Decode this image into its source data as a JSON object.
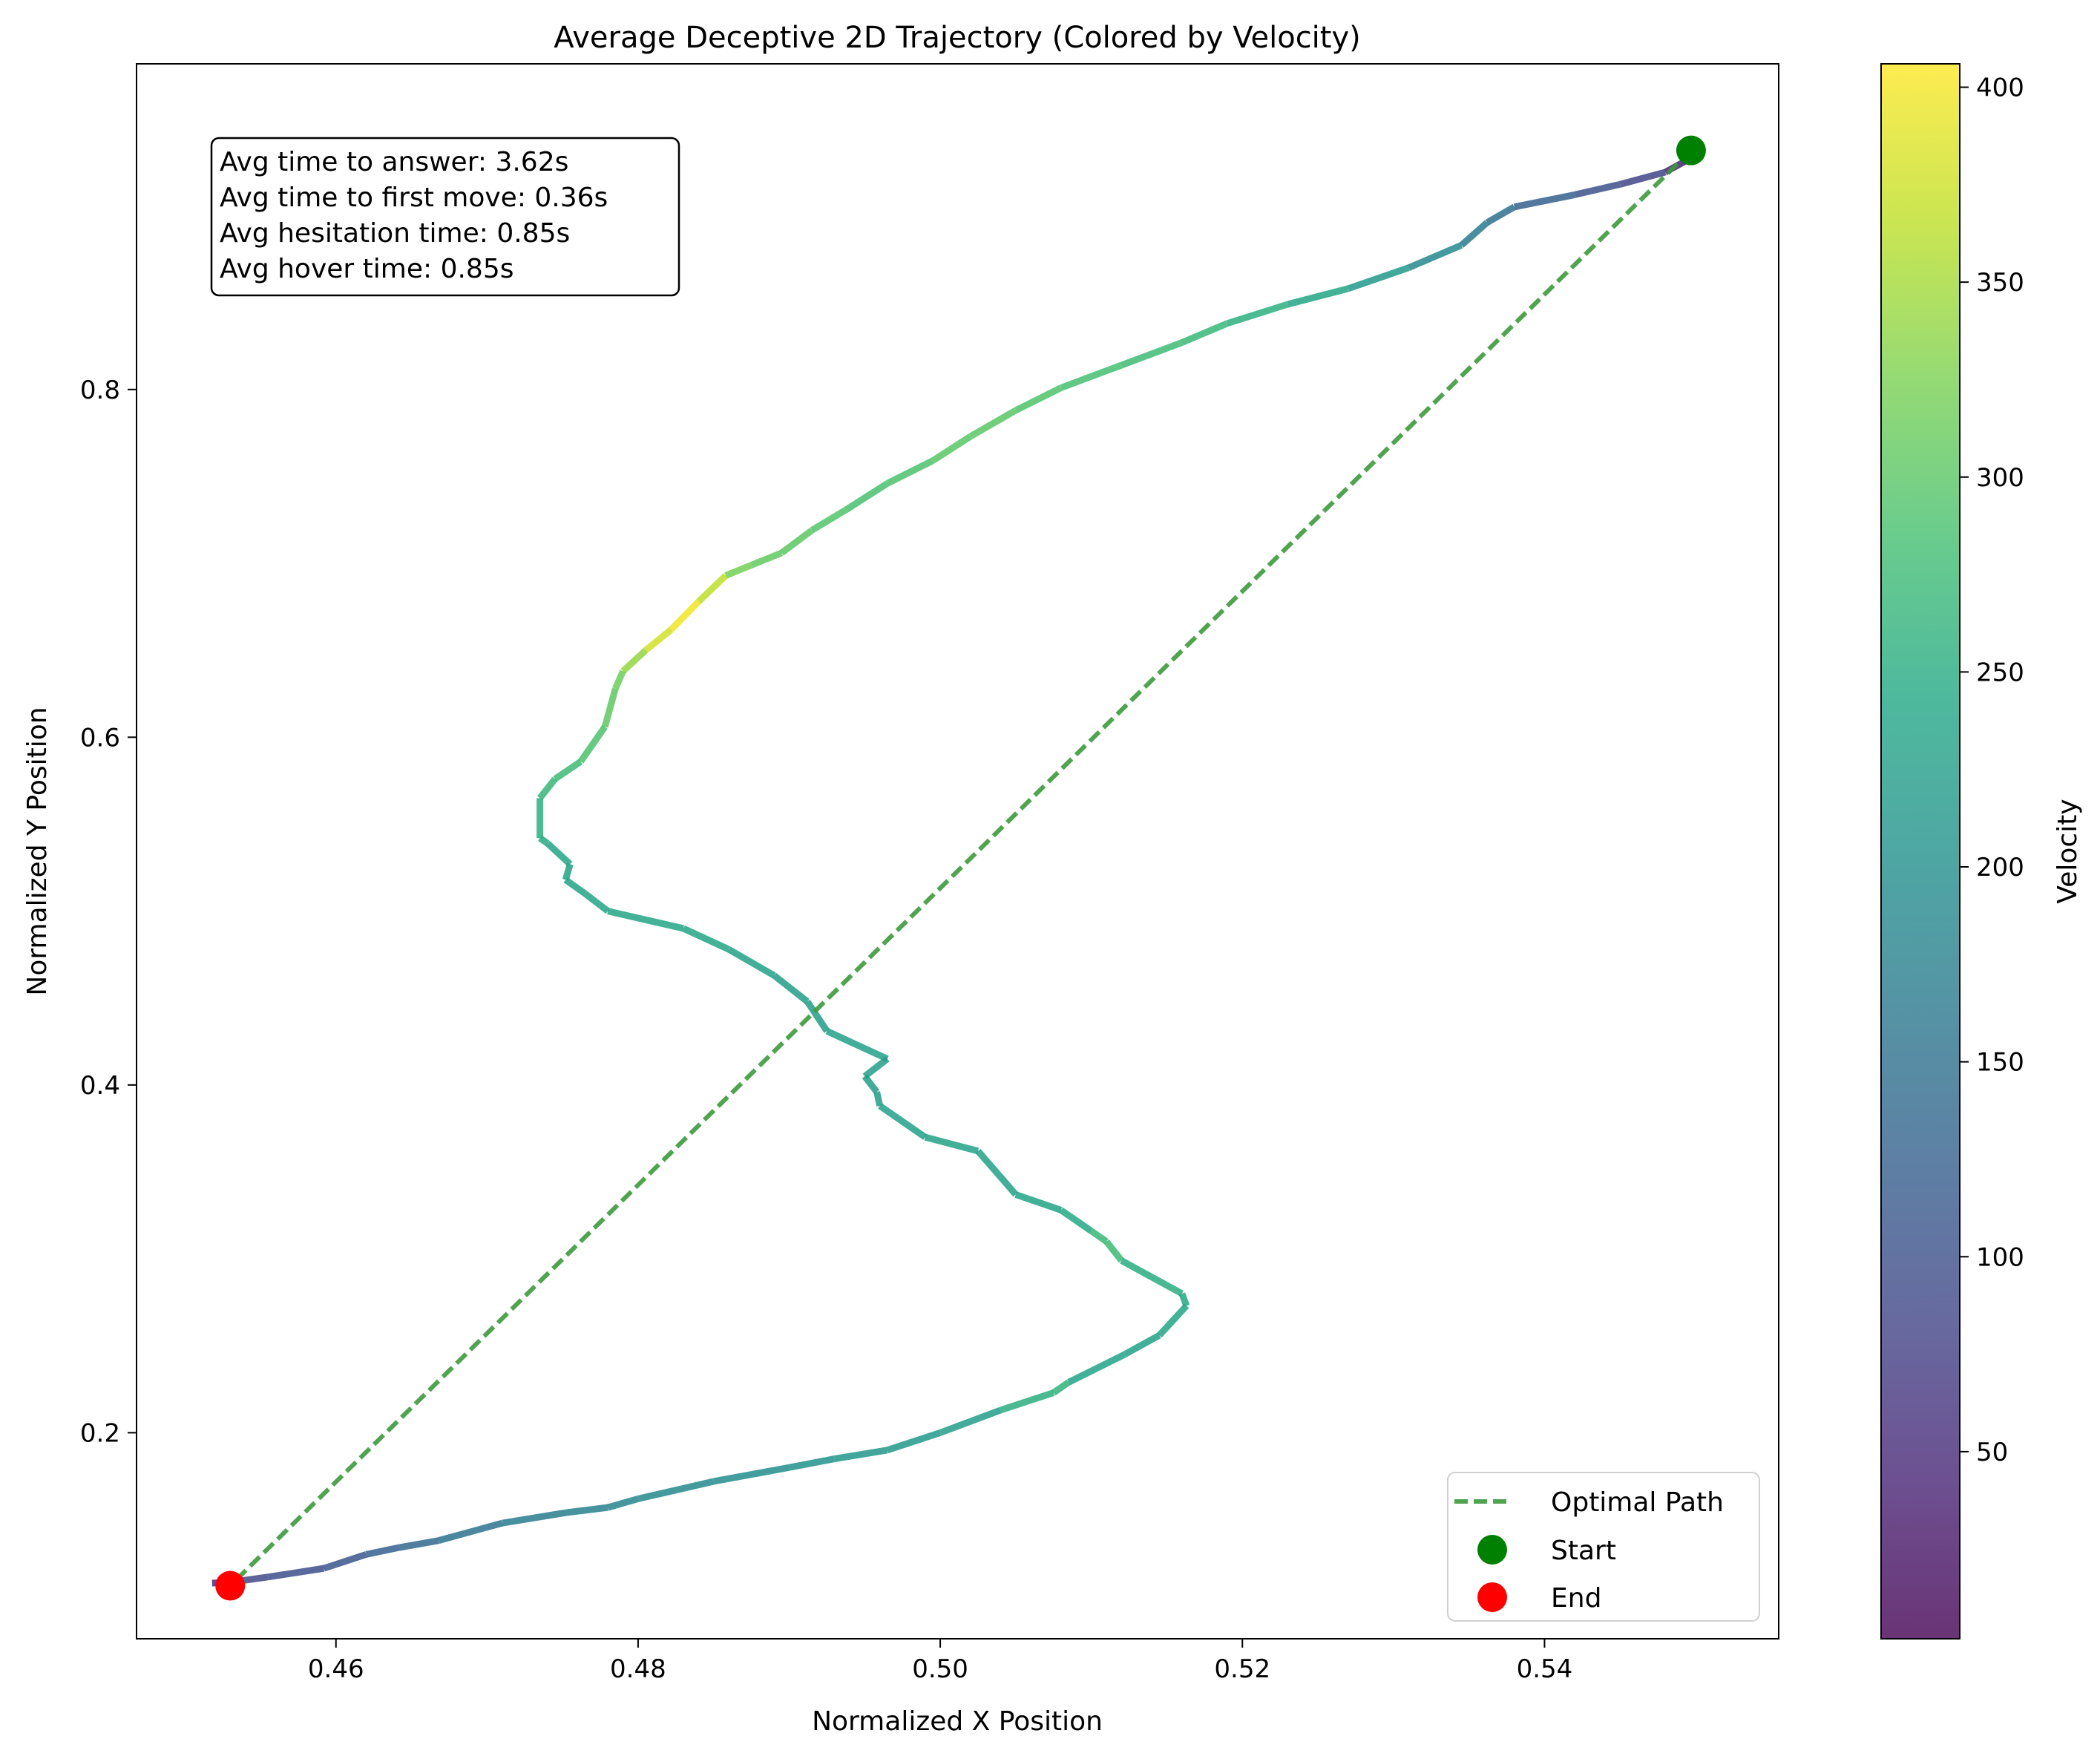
{
  "chart_data": {
    "type": "line",
    "title": "Average Deceptive 2D Trajectory (Colored by Velocity)",
    "xlabel": "Normalized X Position",
    "ylabel": "Normalized Y Position",
    "xlim": [
      0.4468,
      0.5555
    ],
    "ylim": [
      0.0815,
      0.9873
    ],
    "x_ticks": [
      0.46,
      0.48,
      0.5,
      0.52,
      0.54
    ],
    "x_tick_labels": [
      "0.46",
      "0.48",
      "0.50",
      "0.52",
      "0.54"
    ],
    "y_ticks": [
      0.2,
      0.4,
      0.6,
      0.8
    ],
    "y_tick_labels": [
      "0.2",
      "0.4",
      "0.6",
      "0.8"
    ],
    "grid": false,
    "colorbar": {
      "label": "Velocity",
      "range": [
        2,
        406
      ],
      "ticks": [
        50,
        100,
        150,
        200,
        250,
        300,
        350,
        400
      ],
      "tick_labels": [
        "50",
        "100",
        "150",
        "200",
        "250",
        "300",
        "350",
        "400"
      ],
      "colormap": "viridis"
    },
    "stats_box": [
      "Avg time to answer: 3.62s",
      "Avg time to first move: 0.36s",
      "Avg hesitation time: 0.85s",
      "Avg hover time: 0.85s"
    ],
    "legend": {
      "placement": "lower-right",
      "entries": [
        {
          "label": "Optimal Path",
          "color": "#3d9a3d",
          "style": "dashed-line"
        },
        {
          "label": "Start",
          "color": "#008000",
          "style": "marker"
        },
        {
          "label": "End",
          "color": "#ff0000",
          "style": "marker"
        }
      ]
    },
    "optimal_path": {
      "x": [
        0.5497,
        0.453
      ],
      "y": [
        0.9375,
        0.112
      ]
    },
    "start_point": {
      "x": 0.5497,
      "y": 0.9375
    },
    "end_point": {
      "x": 0.453,
      "y": 0.112
    },
    "trajectory": {
      "x": [
        0.5505,
        0.548,
        0.545,
        0.542,
        0.538,
        0.5362,
        0.5345,
        0.531,
        0.527,
        0.523,
        0.519,
        0.516,
        0.512,
        0.508,
        0.505,
        0.502,
        0.4995,
        0.4965,
        0.4938,
        0.4915,
        0.4895,
        0.4875,
        0.4858,
        0.484,
        0.4822,
        0.4805,
        0.479,
        0.4785,
        0.4778,
        0.4762,
        0.4745,
        0.4735,
        0.4735,
        0.474,
        0.4755,
        0.4752,
        0.4765,
        0.478,
        0.483,
        0.486,
        0.489,
        0.4912,
        0.4925,
        0.4965,
        0.495,
        0.4958,
        0.496,
        0.499,
        0.5025,
        0.505,
        0.508,
        0.51,
        0.511,
        0.512,
        0.516,
        0.5163,
        0.5145,
        0.5122,
        0.5085,
        0.5075,
        0.504,
        0.5,
        0.4965,
        0.493,
        0.49,
        0.485,
        0.48,
        0.478,
        0.4752,
        0.471,
        0.4668,
        0.4642,
        0.462,
        0.4592,
        0.4555,
        0.453,
        0.4518
      ],
      "y": [
        0.937,
        0.925,
        0.918,
        0.912,
        0.905,
        0.896,
        0.883,
        0.87,
        0.858,
        0.849,
        0.838,
        0.827,
        0.814,
        0.801,
        0.788,
        0.773,
        0.759,
        0.746,
        0.731,
        0.719,
        0.706,
        0.699,
        0.693,
        0.678,
        0.662,
        0.65,
        0.638,
        0.628,
        0.606,
        0.586,
        0.576,
        0.565,
        0.542,
        0.539,
        0.527,
        0.518,
        0.51,
        0.5,
        0.49,
        0.478,
        0.463,
        0.448,
        0.431,
        0.415,
        0.405,
        0.396,
        0.388,
        0.37,
        0.362,
        0.337,
        0.328,
        0.316,
        0.31,
        0.299,
        0.28,
        0.273,
        0.256,
        0.245,
        0.229,
        0.223,
        0.213,
        0.2,
        0.19,
        0.185,
        0.18,
        0.172,
        0.162,
        0.157,
        0.154,
        0.148,
        0.138,
        0.134,
        0.13,
        0.122,
        0.117,
        0.114,
        0.1135
      ],
      "velocity": [
        10,
        70,
        95,
        110,
        140,
        160,
        175,
        205,
        230,
        250,
        265,
        275,
        280,
        290,
        295,
        305,
        295,
        285,
        290,
        300,
        305,
        310,
        330,
        400,
        395,
        360,
        320,
        310,
        300,
        280,
        275,
        260,
        255,
        240,
        235,
        230,
        240,
        240,
        240,
        235,
        230,
        225,
        230,
        230,
        220,
        225,
        230,
        230,
        235,
        230,
        240,
        250,
        290,
        260,
        245,
        240,
        235,
        230,
        240,
        280,
        230,
        220,
        215,
        210,
        200,
        195,
        185,
        180,
        175,
        165,
        145,
        130,
        115,
        105,
        95,
        85,
        20
      ]
    }
  }
}
